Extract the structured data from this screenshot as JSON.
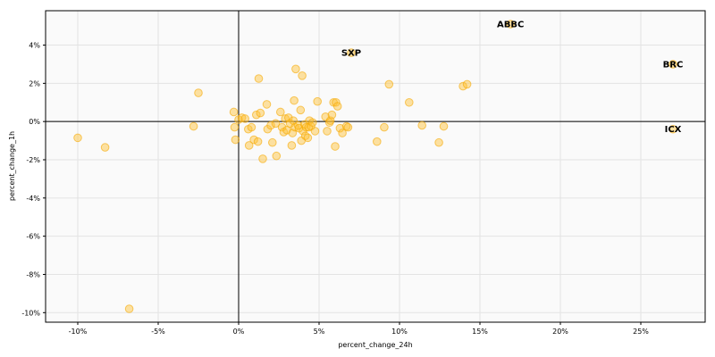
{
  "chart_data": {
    "type": "scatter",
    "title": "",
    "xlabel": "percent_change_24h",
    "ylabel": "percent_change_1h",
    "xlim": [
      -12,
      29
    ],
    "ylim": [
      -10.5,
      5.8
    ],
    "x_ticks": [
      -10,
      -5,
      0,
      5,
      10,
      15,
      20,
      25
    ],
    "x_tick_labels": [
      "-10%",
      "-5%",
      "0%",
      "5%",
      "10%",
      "15%",
      "20%",
      "25%"
    ],
    "y_ticks": [
      4,
      2,
      0,
      -2,
      -4,
      -6,
      -8,
      -10
    ],
    "y_tick_labels": [
      "4%",
      "2%",
      "0%",
      "-2%",
      "-4%",
      "-6%",
      "-8%",
      "-10%"
    ],
    "grid": true,
    "reference_lines": {
      "x": 0,
      "y": 0
    },
    "colors": {
      "point_fill": "#ffc233",
      "point_stroke": "#f5a800",
      "plot_background": "#fafafa",
      "grid": "#e3e3e3"
    },
    "annotations": [
      {
        "text": "ABBC",
        "x": 16.9,
        "y": 5.1
      },
      {
        "text": "SXP",
        "x": 7.0,
        "y": 3.6
      },
      {
        "text": "BRC",
        "x": 27.0,
        "y": 3.0
      },
      {
        "text": "ICX",
        "x": 27.0,
        "y": -0.4
      }
    ],
    "points": [
      [
        -10.0,
        -0.85
      ],
      [
        -8.3,
        -1.35
      ],
      [
        -6.8,
        -9.8
      ],
      [
        -2.8,
        -0.25
      ],
      [
        -2.5,
        1.5
      ],
      [
        -0.3,
        0.5
      ],
      [
        -0.25,
        -0.3
      ],
      [
        -0.2,
        -0.95
      ],
      [
        0.0,
        0.1
      ],
      [
        0.2,
        0.2
      ],
      [
        0.4,
        0.15
      ],
      [
        0.6,
        -0.4
      ],
      [
        0.65,
        -1.25
      ],
      [
        0.8,
        -0.3
      ],
      [
        0.95,
        -0.95
      ],
      [
        1.1,
        0.35
      ],
      [
        1.2,
        -1.05
      ],
      [
        1.25,
        2.25
      ],
      [
        1.35,
        0.45
      ],
      [
        1.5,
        -1.95
      ],
      [
        1.75,
        0.9
      ],
      [
        1.8,
        -0.4
      ],
      [
        2.0,
        -0.2
      ],
      [
        2.1,
        -1.1
      ],
      [
        2.3,
        -0.1
      ],
      [
        2.35,
        -1.8
      ],
      [
        2.6,
        0.5
      ],
      [
        2.7,
        -0.3
      ],
      [
        2.8,
        -0.55
      ],
      [
        2.9,
        0.15
      ],
      [
        3.0,
        -0.45
      ],
      [
        3.1,
        0.2
      ],
      [
        3.2,
        -0.1
      ],
      [
        3.3,
        -1.25
      ],
      [
        3.35,
        -0.6
      ],
      [
        3.4,
        0.05
      ],
      [
        3.45,
        1.1
      ],
      [
        3.5,
        -0.3
      ],
      [
        3.55,
        2.75
      ],
      [
        3.7,
        -0.2
      ],
      [
        3.75,
        -0.35
      ],
      [
        3.85,
        0.6
      ],
      [
        3.9,
        -1.0
      ],
      [
        3.95,
        2.4
      ],
      [
        4.0,
        -0.5
      ],
      [
        4.1,
        -0.15
      ],
      [
        4.15,
        -0.75
      ],
      [
        4.2,
        -0.3
      ],
      [
        4.3,
        -0.85
      ],
      [
        4.35,
        -0.3
      ],
      [
        4.4,
        0.05
      ],
      [
        4.5,
        -0.25
      ],
      [
        4.6,
        -0.05
      ],
      [
        4.75,
        -0.5
      ],
      [
        4.9,
        1.05
      ],
      [
        5.4,
        0.25
      ],
      [
        5.5,
        -0.5
      ],
      [
        5.65,
        -0.05
      ],
      [
        5.7,
        0.05
      ],
      [
        5.8,
        0.35
      ],
      [
        5.9,
        1.0
      ],
      [
        6.0,
        -1.3
      ],
      [
        6.05,
        1.0
      ],
      [
        6.15,
        0.8
      ],
      [
        6.3,
        -0.35
      ],
      [
        6.45,
        -0.6
      ],
      [
        6.7,
        -0.25
      ],
      [
        6.8,
        -0.3
      ],
      [
        8.6,
        -1.05
      ],
      [
        9.05,
        -0.3
      ],
      [
        9.35,
        1.95
      ],
      [
        10.6,
        1.0
      ],
      [
        11.4,
        -0.2
      ],
      [
        12.45,
        -1.1
      ],
      [
        12.75,
        -0.25
      ],
      [
        13.95,
        1.85
      ],
      [
        14.2,
        1.95
      ]
    ]
  }
}
